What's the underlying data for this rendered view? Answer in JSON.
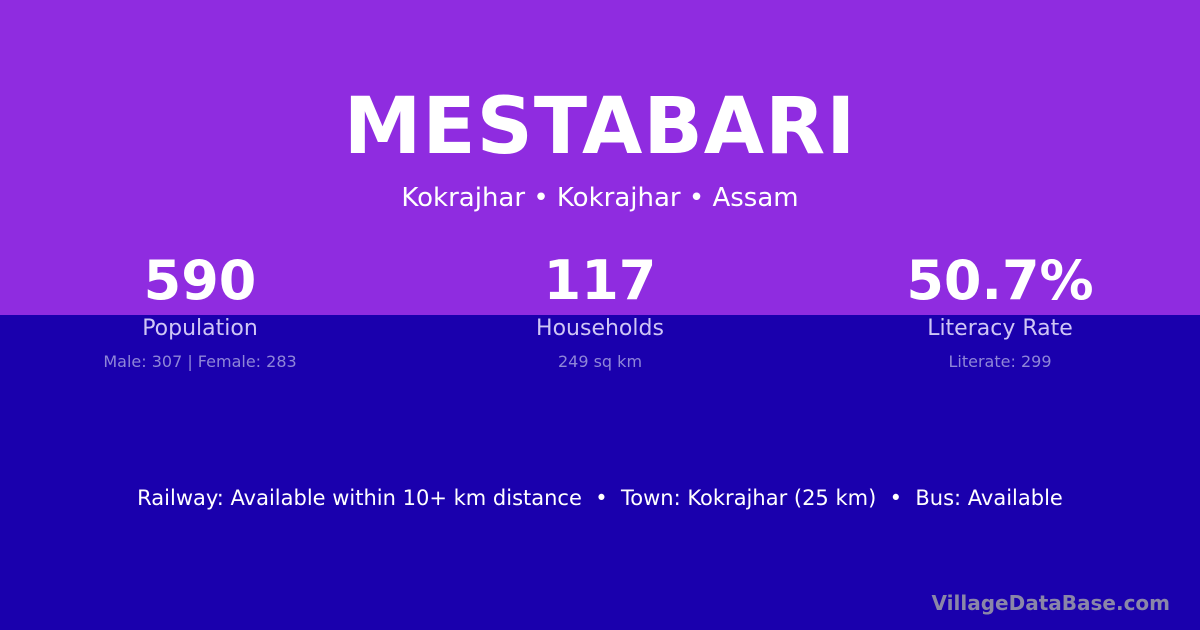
{
  "title": "MESTABARI",
  "location": "Kokrajhar • Kokrajhar • Assam",
  "stats": [
    {
      "value": "590",
      "label": "Population",
      "detail": "Male: 307 | Female: 283"
    },
    {
      "value": "117",
      "label": "Households",
      "detail": "249 sq km"
    },
    {
      "value": "50.7%",
      "label": "Literacy Rate",
      "detail": "Literate: 299"
    }
  ],
  "info": "Railway: Available within 10+ km distance  •  Town: Kokrajhar (25 km)  •  Bus: Available",
  "brand": "VillageDataBase.com",
  "colors": {
    "top": "#8f2ce0",
    "bottom": "#1a00ad"
  }
}
